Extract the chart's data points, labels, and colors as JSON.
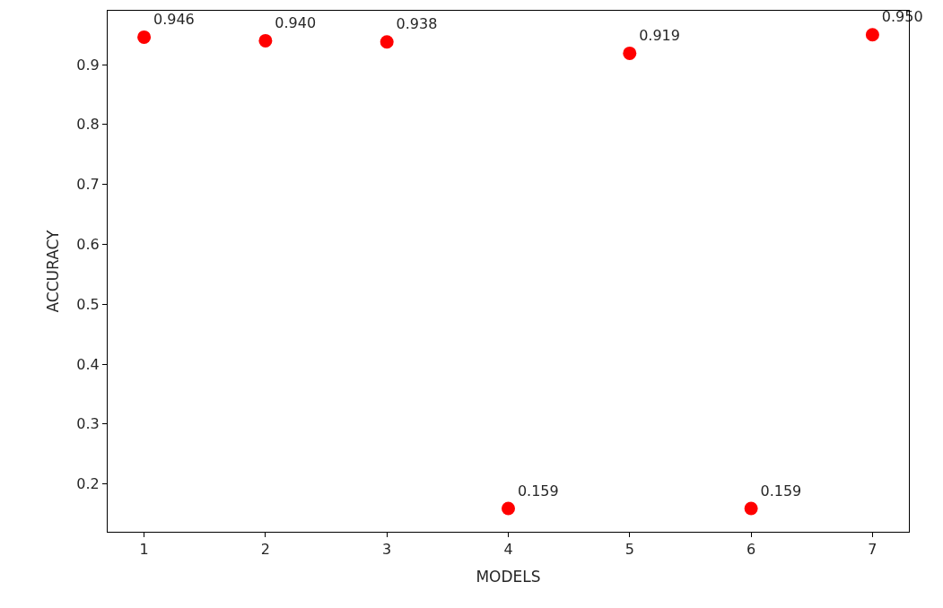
{
  "chart_data": {
    "type": "scatter",
    "xlabel": "MODELS",
    "ylabel": "ACCURACY",
    "x": [
      1,
      2,
      3,
      4,
      5,
      6,
      7
    ],
    "series": [
      {
        "color": "#ff0000",
        "values": [
          0.946,
          0.94,
          0.938,
          0.159,
          0.919,
          0.159,
          0.95
        ],
        "value_labels": [
          "0.946",
          "0.940",
          "0.938",
          "0.159",
          "0.919",
          "0.159",
          "0.950"
        ]
      }
    ],
    "marker": "circle",
    "xlim": [
      0.7,
      7.3
    ],
    "xticks": [
      1,
      2,
      3,
      4,
      5,
      6,
      7
    ],
    "ylim": [
      0.12,
      0.99
    ],
    "yticks": [
      0.2,
      0.3,
      0.4,
      0.5,
      0.6,
      0.7,
      0.8,
      0.9
    ]
  }
}
